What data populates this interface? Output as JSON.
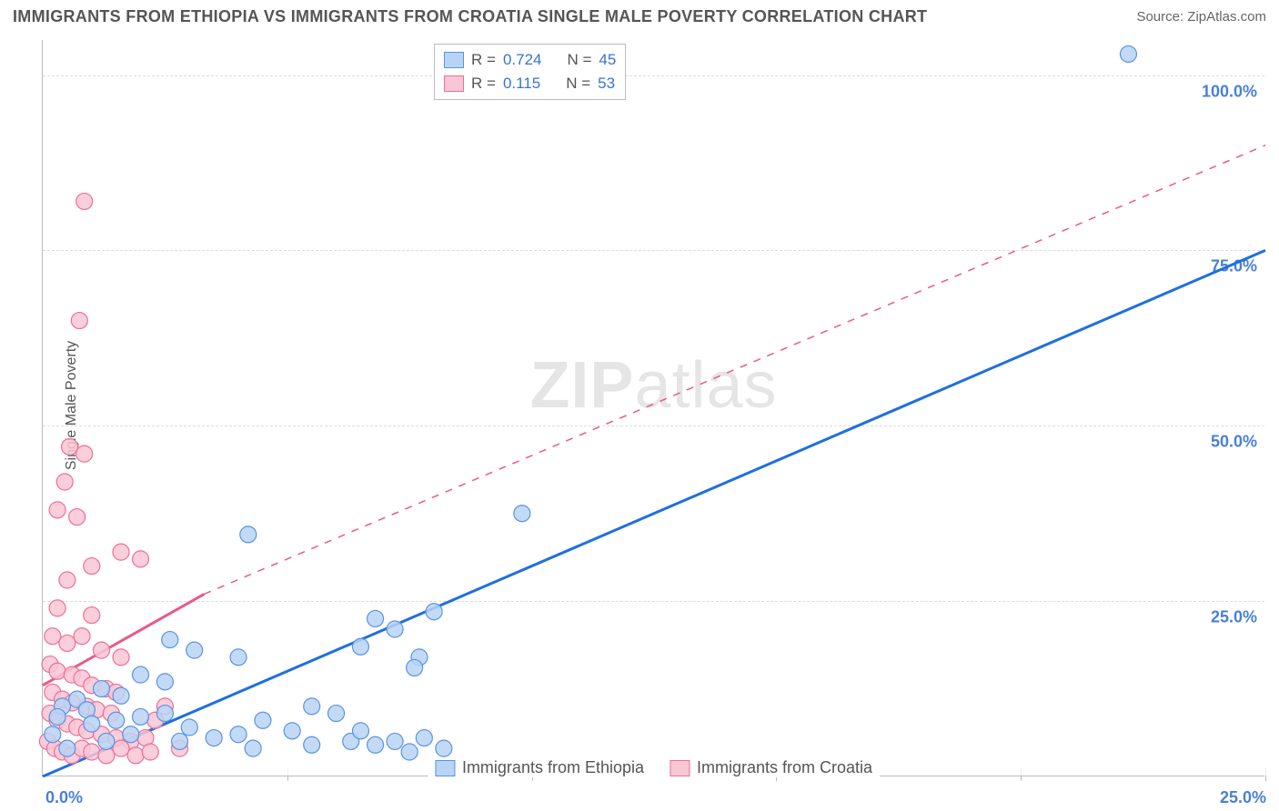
{
  "chart": {
    "type": "scatter",
    "title": "IMMIGRANTS FROM ETHIOPIA VS IMMIGRANTS FROM CROATIA SINGLE MALE POVERTY CORRELATION CHART",
    "source": "Source: ZipAtlas.com",
    "y_axis_title": "Single Male Poverty",
    "watermark_a": "ZIP",
    "watermark_b": "atlas",
    "xlim": [
      0,
      25
    ],
    "ylim": [
      0,
      105
    ],
    "x_ticks": [
      0,
      5,
      10,
      15,
      20,
      25
    ],
    "y_gridlines": [
      25,
      50,
      75,
      100
    ],
    "y_tick_labels": [
      "25.0%",
      "50.0%",
      "75.0%",
      "100.0%"
    ],
    "x_label_start": "0.0%",
    "x_label_end": "25.0%",
    "background_color": "#ffffff",
    "grid_color": "#dddddd",
    "axis_color": "#bbbbbb",
    "marker_radius": 9,
    "marker_stroke_width": 1.2,
    "series": {
      "ethiopia": {
        "label": "Immigrants from Ethiopia",
        "fill": "#b8d4f4",
        "stroke": "#5a93e0",
        "regression": {
          "color": "#1f6fe0",
          "width": 3,
          "dash": "none",
          "p1": [
            0,
            0
          ],
          "p2": [
            25,
            75
          ]
        },
        "R_label": "R =",
        "R": "0.724",
        "N_label": "N =",
        "N": "45",
        "points": [
          [
            22.2,
            103
          ],
          [
            9.8,
            37.5
          ],
          [
            4.2,
            34.5
          ],
          [
            8.0,
            23.5
          ],
          [
            6.8,
            22.5
          ],
          [
            7.2,
            21.0
          ],
          [
            2.6,
            19.5
          ],
          [
            3.1,
            18.0
          ],
          [
            4.0,
            17.0
          ],
          [
            6.5,
            18.5
          ],
          [
            7.7,
            17.0
          ],
          [
            2.0,
            14.5
          ],
          [
            2.5,
            13.5
          ],
          [
            1.2,
            12.5
          ],
          [
            1.6,
            11.5
          ],
          [
            0.7,
            11.0
          ],
          [
            0.4,
            10.0
          ],
          [
            0.9,
            9.5
          ],
          [
            0.3,
            8.5
          ],
          [
            1.0,
            7.5
          ],
          [
            1.5,
            8.0
          ],
          [
            2.0,
            8.5
          ],
          [
            2.5,
            9.0
          ],
          [
            3.0,
            7.0
          ],
          [
            3.5,
            5.5
          ],
          [
            4.0,
            6.0
          ],
          [
            4.5,
            8.0
          ],
          [
            5.1,
            6.5
          ],
          [
            5.5,
            10.0
          ],
          [
            5.5,
            4.5
          ],
          [
            6.0,
            9.0
          ],
          [
            6.3,
            5.0
          ],
          [
            6.8,
            4.5
          ],
          [
            6.5,
            6.5
          ],
          [
            7.2,
            5.0
          ],
          [
            7.5,
            3.5
          ],
          [
            7.8,
            5.5
          ],
          [
            7.6,
            15.5
          ],
          [
            8.2,
            4.0
          ],
          [
            0.2,
            6.0
          ],
          [
            0.5,
            4.0
          ],
          [
            1.3,
            5.0
          ],
          [
            1.8,
            6.0
          ],
          [
            2.8,
            5.0
          ],
          [
            4.3,
            4.0
          ]
        ]
      },
      "croatia": {
        "label": "Immigrants from Croatia",
        "fill": "#f9c6d5",
        "stroke": "#ec6f96",
        "regression": {
          "color": "#e85a88",
          "width": 3,
          "solid_until_x": 3.3,
          "solid_until_y": 26,
          "dash_p2": [
            25,
            90
          ],
          "p1": [
            0,
            13
          ]
        },
        "R_label": "R =",
        "R": "0.115",
        "N_label": "N =",
        "N": "53",
        "points": [
          [
            0.85,
            82
          ],
          [
            0.75,
            65
          ],
          [
            0.55,
            47
          ],
          [
            0.85,
            46
          ],
          [
            0.45,
            42
          ],
          [
            0.3,
            38
          ],
          [
            0.7,
            37
          ],
          [
            1.6,
            32
          ],
          [
            2.0,
            31
          ],
          [
            1.0,
            30
          ],
          [
            0.5,
            28
          ],
          [
            0.3,
            24
          ],
          [
            1.0,
            23
          ],
          [
            0.2,
            20
          ],
          [
            0.5,
            19
          ],
          [
            1.2,
            18
          ],
          [
            1.6,
            17
          ],
          [
            0.8,
            20
          ],
          [
            0.15,
            16
          ],
          [
            0.3,
            15
          ],
          [
            0.6,
            14.5
          ],
          [
            0.8,
            14
          ],
          [
            1.0,
            13
          ],
          [
            1.3,
            12.5
          ],
          [
            1.5,
            12
          ],
          [
            0.2,
            12
          ],
          [
            0.4,
            11
          ],
          [
            0.6,
            10.5
          ],
          [
            0.9,
            10
          ],
          [
            1.1,
            9.5
          ],
          [
            1.4,
            9
          ],
          [
            0.15,
            9
          ],
          [
            0.3,
            8
          ],
          [
            0.5,
            7.5
          ],
          [
            0.7,
            7
          ],
          [
            0.9,
            6.5
          ],
          [
            1.2,
            6
          ],
          [
            1.5,
            5.5
          ],
          [
            1.8,
            5
          ],
          [
            2.1,
            5.5
          ],
          [
            2.3,
            8
          ],
          [
            2.5,
            10
          ],
          [
            0.1,
            5
          ],
          [
            0.25,
            4
          ],
          [
            0.4,
            3.5
          ],
          [
            0.6,
            3
          ],
          [
            0.8,
            4
          ],
          [
            1.0,
            3.5
          ],
          [
            1.3,
            3
          ],
          [
            1.6,
            4
          ],
          [
            1.9,
            3
          ],
          [
            2.2,
            3.5
          ],
          [
            2.8,
            4
          ]
        ]
      }
    }
  }
}
